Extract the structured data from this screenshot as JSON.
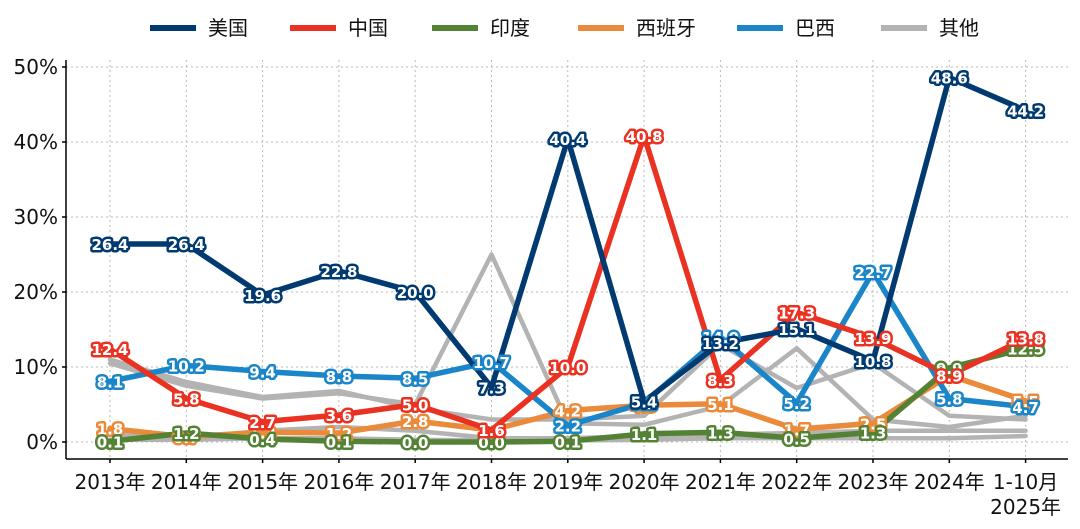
{
  "chart_data": {
    "type": "line",
    "title": "",
    "xlabel": "",
    "ylabel": "",
    "ylim": [
      0,
      50
    ],
    "y_ticks": [
      "0%",
      "10%",
      "20%",
      "30%",
      "40%",
      "50%"
    ],
    "y_tick_values": [
      0,
      10,
      20,
      30,
      40,
      50
    ],
    "grid": true,
    "legend_position": "top",
    "categories": [
      "2013年",
      "2014年",
      "2015年",
      "2016年",
      "2017年",
      "2018年",
      "2019年",
      "2020年",
      "2021年",
      "2022年",
      "2023年",
      "2024年",
      "1-10月"
    ],
    "last_category_sub": "2025年",
    "series": [
      {
        "name": "其他",
        "color": "#b3b3b3",
        "show_labels": false,
        "values": [
          10.5,
          7.5,
          5.8,
          6.5,
          5.0,
          25.0,
          2.5,
          2.3,
          4.8,
          12.5,
          3.0,
          2.0,
          3.5
        ]
      },
      {
        "name": "其他",
        "color": "#b3b3b3",
        "show_labels": false,
        "legend": false,
        "values": [
          11.0,
          8.0,
          6.0,
          6.8,
          4.5,
          3.0,
          3.0,
          3.5,
          13.0,
          7.2,
          10.5,
          3.5,
          3.0
        ]
      },
      {
        "name": "其他",
        "color": "#b3b3b3",
        "show_labels": false,
        "legend": false,
        "values": [
          1.0,
          0.5,
          1.5,
          2.0,
          1.5,
          0.5,
          0.5,
          0.8,
          1.0,
          1.2,
          1.5,
          1.5,
          1.5
        ]
      },
      {
        "name": "其他",
        "color": "#b3b3b3",
        "show_labels": false,
        "legend": false,
        "values": [
          0.3,
          0.3,
          0.5,
          0.5,
          0.3,
          0.2,
          0.2,
          0.3,
          0.5,
          0.5,
          0.5,
          0.5,
          0.8
        ]
      },
      {
        "name": "西班牙",
        "color": "#e98b3a",
        "show_labels": true,
        "values": [
          1.8,
          0.7,
          1.3,
          1.2,
          2.8,
          1.6,
          4.2,
          4.9,
          5.1,
          1.7,
          2.5,
          8.9,
          5.5
        ]
      },
      {
        "name": "印度",
        "color": "#548235",
        "show_labels": true,
        "values": [
          0.1,
          1.2,
          0.4,
          0.1,
          0.0,
          0.0,
          0.1,
          1.1,
          1.3,
          0.5,
          1.3,
          9.9,
          12.5
        ]
      },
      {
        "name": "巴西",
        "color": "#1a85c8",
        "show_labels": true,
        "values": [
          8.1,
          10.2,
          9.4,
          8.8,
          8.5,
          10.7,
          2.2,
          5.2,
          14.0,
          5.2,
          22.7,
          5.8,
          4.7
        ]
      },
      {
        "name": "中国",
        "color": "#ea3222",
        "show_labels": true,
        "values": [
          12.4,
          5.8,
          2.7,
          3.6,
          5.0,
          1.6,
          10.0,
          40.8,
          8.3,
          17.3,
          13.9,
          8.9,
          13.8
        ]
      },
      {
        "name": "美国",
        "color": "#003a70",
        "show_labels": true,
        "values": [
          26.4,
          26.4,
          19.6,
          22.8,
          20.0,
          7.3,
          40.4,
          5.4,
          13.2,
          15.1,
          10.8,
          48.6,
          44.2
        ]
      }
    ],
    "legend": [
      {
        "name": "美国",
        "color": "#003a70"
      },
      {
        "name": "中国",
        "color": "#ea3222"
      },
      {
        "name": "印度",
        "color": "#548235"
      },
      {
        "name": "西班牙",
        "color": "#e98b3a"
      },
      {
        "name": "巴西",
        "color": "#1a85c8"
      },
      {
        "name": "其他",
        "color": "#b3b3b3"
      }
    ]
  }
}
